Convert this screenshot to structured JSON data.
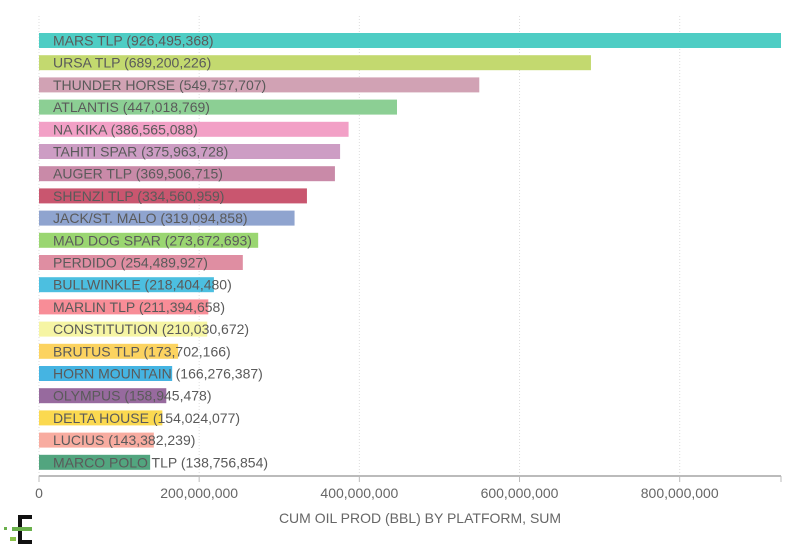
{
  "chart_data": {
    "type": "bar",
    "orientation": "horizontal",
    "title": "",
    "xlabel": "CUM OIL PROD (BBL) BY PLATFORM, SUM",
    "ylabel": "",
    "xlim": [
      0,
      926495368
    ],
    "xticks": [
      0,
      200000000,
      400000000,
      600000000,
      800000000
    ],
    "xtick_labels": [
      "0",
      "200,000,000",
      "400,000,000",
      "600,000,000",
      "800,000,000"
    ],
    "grid": "vertical dotted",
    "categories": [
      "MARS TLP",
      "URSA TLP",
      "THUNDER HORSE",
      "ATLANTIS",
      "NA KIKA",
      "TAHITI SPAR",
      "AUGER TLP",
      "SHENZI TLP",
      "JACK/ST. MALO",
      "MAD DOG SPAR",
      "PERDIDO",
      "BULLWINKLE",
      "MARLIN TLP",
      "CONSTITUTION",
      "BRUTUS TLP",
      "HORN MOUNTAIN",
      "OLYMPUS",
      "DELTA HOUSE",
      "LUCIUS",
      "MARCO POLO TLP"
    ],
    "values": [
      926495368,
      689200226,
      549757707,
      447018769,
      386565088,
      375963728,
      369506715,
      334560959,
      319094858,
      273672693,
      254489927,
      218404480,
      211394658,
      210030672,
      173702166,
      166276387,
      158945478,
      154024077,
      143382239,
      138756854
    ],
    "bar_labels": [
      "MARS TLP (926,495,368)",
      "URSA TLP (689,200,226)",
      "THUNDER HORSE (549,757,707)",
      "ATLANTIS (447,018,769)",
      "NA KIKA (386,565,088)",
      "TAHITI SPAR (375,963,728)",
      "AUGER TLP (369,506,715)",
      "SHENZI TLP (334,560,959)",
      "JACK/ST. MALO (319,094,858)",
      "MAD DOG SPAR (273,672,693)",
      "PERDIDO (254,489,927)",
      "BULLWINKLE (218,404,480)",
      "MARLIN TLP (211,394,658)",
      "CONSTITUTION (210,030,672)",
      "BRUTUS TLP (173,702,166)",
      "HORN MOUNTAIN (166,276,387)",
      "OLYMPUS (158,945,478)",
      "DELTA HOUSE (154,024,077)",
      "LUCIUS (143,382,239)",
      "MARCO POLO TLP (138,756,854)"
    ],
    "colors": [
      "#4ecdc4",
      "#c3d96f",
      "#d1a2b4",
      "#8ccf94",
      "#f2a0c6",
      "#cd9dc4",
      "#c98aa8",
      "#c9566f",
      "#8fa4cf",
      "#9ad671",
      "#df8ea2",
      "#4cbfe0",
      "#f88d97",
      "#f6f5a4",
      "#fcd360",
      "#45b4e2",
      "#976a9e",
      "#fbd950",
      "#f8aca0",
      "#52a57f"
    ],
    "legend": "none"
  }
}
